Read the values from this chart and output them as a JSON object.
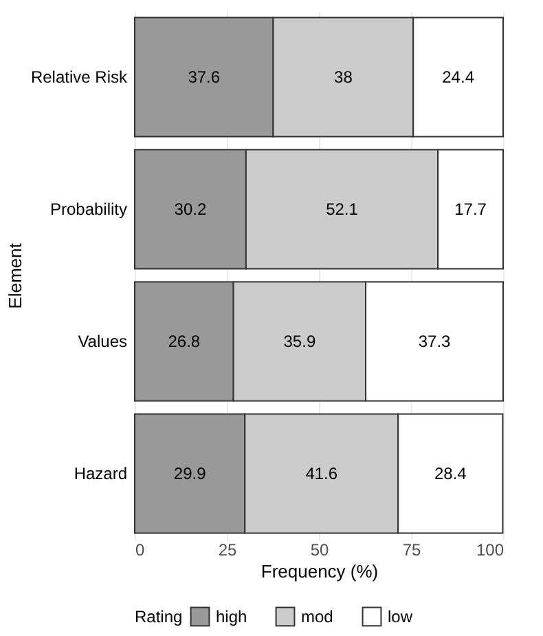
{
  "chart_data": {
    "type": "bar",
    "orientation": "horizontal",
    "stacked": true,
    "data_labels": true,
    "grid": true,
    "legend": "bottom",
    "xlabel": "Frequency (%)",
    "ylabel": "Element",
    "legend_title": "Rating",
    "categories": [
      "Relative Risk",
      "Probability",
      "Values",
      "Hazard"
    ],
    "series": [
      {
        "name": "high",
        "color": "#999999",
        "values": [
          37.6,
          30.2,
          26.8,
          29.9
        ]
      },
      {
        "name": "mod",
        "color": "#cccccc",
        "values": [
          38,
          52.1,
          35.9,
          41.6
        ]
      },
      {
        "name": "low",
        "color": "#ffffff",
        "values": [
          24.4,
          17.7,
          37.3,
          28.4
        ]
      }
    ],
    "xlim": [
      0,
      100
    ],
    "xticks": [
      0,
      25,
      50,
      75,
      100
    ]
  }
}
